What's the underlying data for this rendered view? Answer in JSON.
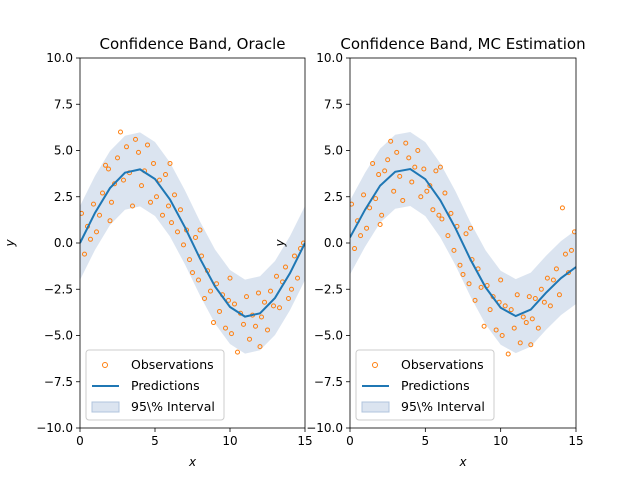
{
  "figure": {
    "colors": {
      "observations": "#ff7f0e",
      "predictions": "#1f77b4",
      "band": "#b0c4de"
    }
  },
  "chart_data": [
    {
      "type": "scatter",
      "title": "Confidence Band, Oracle",
      "xlabel": "x",
      "ylabel": "y",
      "xlim": [
        0,
        15
      ],
      "ylim": [
        -10,
        10
      ],
      "x_ticks": [
        "0",
        "5",
        "10",
        "15"
      ],
      "y_ticks": [
        "10.0",
        "7.5",
        "5.0",
        "2.5",
        "0.0",
        "−2.5",
        "−5.0",
        "−7.5",
        "−10.0"
      ],
      "grid": false,
      "legend_position": "lower-left",
      "legend": [
        "Observations",
        "Predictions",
        "95\\% Interval"
      ],
      "prediction_function": "4*sin(2*pi*x/15)",
      "band_halfwidth": 2.0,
      "series": [
        {
          "name": "Observations",
          "points": [
            [
              0.1,
              1.6
            ],
            [
              0.3,
              -0.6
            ],
            [
              0.5,
              0.9
            ],
            [
              0.7,
              0.2
            ],
            [
              0.9,
              2.1
            ],
            [
              1.1,
              0.6
            ],
            [
              1.3,
              1.5
            ],
            [
              1.5,
              2.7
            ],
            [
              1.7,
              4.2
            ],
            [
              1.9,
              4.0
            ],
            [
              2.1,
              2.2
            ],
            [
              2.3,
              3.2
            ],
            [
              2.5,
              4.6
            ],
            [
              2.7,
              6.0
            ],
            [
              2.9,
              3.4
            ],
            [
              3.1,
              5.2
            ],
            [
              3.3,
              3.8
            ],
            [
              3.5,
              2.0
            ],
            [
              3.7,
              5.6
            ],
            [
              3.9,
              4.9
            ],
            [
              4.1,
              3.1
            ],
            [
              4.3,
              3.9
            ],
            [
              4.5,
              5.3
            ],
            [
              4.7,
              2.2
            ],
            [
              4.9,
              4.3
            ],
            [
              5.1,
              2.5
            ],
            [
              5.3,
              3.4
            ],
            [
              5.5,
              1.5
            ],
            [
              5.7,
              3.7
            ],
            [
              5.9,
              2.0
            ],
            [
              6.1,
              1.1
            ],
            [
              6.3,
              2.6
            ],
            [
              6.5,
              0.6
            ],
            [
              6.7,
              1.8
            ],
            [
              6.9,
              -0.1
            ],
            [
              7.1,
              0.7
            ],
            [
              7.3,
              -0.9
            ],
            [
              7.5,
              -1.6
            ],
            [
              7.7,
              0.3
            ],
            [
              7.9,
              -2.0
            ],
            [
              8.1,
              -0.7
            ],
            [
              8.3,
              -3.0
            ],
            [
              8.5,
              -1.5
            ],
            [
              8.7,
              -2.6
            ],
            [
              8.9,
              -4.3
            ],
            [
              9.1,
              -2.2
            ],
            [
              9.3,
              -3.7
            ],
            [
              9.5,
              -2.8
            ],
            [
              9.7,
              -4.6
            ],
            [
              9.9,
              -3.1
            ],
            [
              10.1,
              -4.9
            ],
            [
              10.3,
              -3.3
            ],
            [
              10.5,
              -5.9
            ],
            [
              10.7,
              -3.8
            ],
            [
              10.9,
              -4.4
            ],
            [
              11.1,
              -2.9
            ],
            [
              11.3,
              -5.2
            ],
            [
              11.5,
              -3.9
            ],
            [
              11.7,
              -4.5
            ],
            [
              11.9,
              -2.7
            ],
            [
              12.1,
              -4.0
            ],
            [
              12.3,
              -3.2
            ],
            [
              12.5,
              -4.7
            ],
            [
              12.7,
              -2.6
            ],
            [
              12.9,
              -3.4
            ],
            [
              13.1,
              -1.8
            ],
            [
              13.3,
              -3.5
            ],
            [
              13.5,
              -2.1
            ],
            [
              13.7,
              -1.3
            ],
            [
              13.9,
              -3.0
            ],
            [
              14.1,
              -2.5
            ],
            [
              14.3,
              -0.7
            ],
            [
              14.5,
              -1.9
            ],
            [
              14.7,
              -0.3
            ],
            [
              14.9,
              0.0
            ],
            [
              2.0,
              1.2
            ],
            [
              6.0,
              4.3
            ],
            [
              8.0,
              0.7
            ],
            [
              10.0,
              -1.9
            ],
            [
              12.0,
              -5.6
            ]
          ]
        },
        {
          "name": "Predictions",
          "x": [
            0,
            1,
            2,
            3,
            4,
            5,
            6,
            7,
            8,
            9,
            10,
            11,
            12,
            13,
            14,
            15
          ],
          "y": [
            0.0,
            1.63,
            2.97,
            3.8,
            3.98,
            3.46,
            2.35,
            0.84,
            -0.84,
            -2.35,
            -3.46,
            -3.98,
            -3.8,
            -2.97,
            -1.63,
            0.0
          ]
        },
        {
          "name": "95\\% Interval",
          "lower_offset": -2.0,
          "upper_offset": 2.0
        }
      ]
    },
    {
      "type": "scatter",
      "title": "Confidence Band, MC Estimation",
      "xlabel": "x",
      "ylabel": "y",
      "xlim": [
        0,
        15
      ],
      "ylim": [
        -10,
        10
      ],
      "x_ticks": [
        "0",
        "5",
        "10",
        "15"
      ],
      "y_ticks": [
        "10.0",
        "7.5",
        "5.0",
        "2.5",
        "0.0",
        "−2.5",
        "−5.0",
        "−7.5",
        "−10.0"
      ],
      "grid": false,
      "legend_position": "lower-left",
      "legend": [
        "Observations",
        "Predictions",
        "95\\% Interval"
      ],
      "prediction_function": "4*sin(2*pi*x/15), flattening toward -1.3 at x=15",
      "band_halfwidth": 2.0,
      "series": [
        {
          "name": "Observations",
          "points": [
            [
              0.1,
              2.1
            ],
            [
              0.3,
              -0.3
            ],
            [
              0.5,
              1.2
            ],
            [
              0.7,
              0.4
            ],
            [
              0.9,
              2.6
            ],
            [
              1.1,
              0.8
            ],
            [
              1.3,
              1.9
            ],
            [
              1.5,
              4.3
            ],
            [
              1.7,
              2.4
            ],
            [
              1.9,
              3.7
            ],
            [
              2.1,
              1.5
            ],
            [
              2.3,
              3.9
            ],
            [
              2.5,
              4.5
            ],
            [
              2.7,
              5.5
            ],
            [
              2.9,
              2.8
            ],
            [
              3.1,
              4.9
            ],
            [
              3.3,
              3.6
            ],
            [
              3.5,
              2.3
            ],
            [
              3.7,
              5.4
            ],
            [
              3.9,
              4.6
            ],
            [
              4.1,
              3.3
            ],
            [
              4.3,
              4.1
            ],
            [
              4.5,
              5.0
            ],
            [
              4.7,
              2.5
            ],
            [
              4.9,
              4.0
            ],
            [
              5.1,
              2.8
            ],
            [
              5.3,
              3.1
            ],
            [
              5.5,
              1.8
            ],
            [
              5.7,
              3.9
            ],
            [
              5.9,
              1.5
            ],
            [
              6.1,
              1.3
            ],
            [
              6.3,
              2.7
            ],
            [
              6.5,
              0.4
            ],
            [
              6.7,
              1.6
            ],
            [
              6.9,
              -0.4
            ],
            [
              7.1,
              0.9
            ],
            [
              7.3,
              -1.2
            ],
            [
              7.5,
              -1.7
            ],
            [
              7.7,
              0.5
            ],
            [
              7.9,
              -2.2
            ],
            [
              8.1,
              -0.9
            ],
            [
              8.3,
              -3.1
            ],
            [
              8.5,
              -1.4
            ],
            [
              8.7,
              -2.4
            ],
            [
              8.9,
              -4.5
            ],
            [
              9.1,
              -2.3
            ],
            [
              9.3,
              -3.6
            ],
            [
              9.5,
              -2.9
            ],
            [
              9.7,
              -4.7
            ],
            [
              9.9,
              -3.2
            ],
            [
              10.1,
              -5.0
            ],
            [
              10.3,
              -3.4
            ],
            [
              10.5,
              -6.0
            ],
            [
              10.7,
              -3.6
            ],
            [
              10.9,
              -4.6
            ],
            [
              11.1,
              -2.8
            ],
            [
              11.3,
              -5.4
            ],
            [
              11.5,
              -4.0
            ],
            [
              11.7,
              -4.3
            ],
            [
              11.9,
              -2.9
            ],
            [
              12.1,
              -4.1
            ],
            [
              12.3,
              -3.0
            ],
            [
              12.5,
              -4.6
            ],
            [
              12.7,
              -2.5
            ],
            [
              12.9,
              -3.2
            ],
            [
              13.1,
              -1.9
            ],
            [
              13.3,
              -3.4
            ],
            [
              13.5,
              -2.0
            ],
            [
              13.7,
              -1.4
            ],
            [
              13.9,
              -2.8
            ],
            [
              14.1,
              1.9
            ],
            [
              14.3,
              -0.6
            ],
            [
              14.5,
              -1.6
            ],
            [
              14.7,
              -0.4
            ],
            [
              14.9,
              0.6
            ],
            [
              2.0,
              1.0
            ],
            [
              6.0,
              4.1
            ],
            [
              8.0,
              0.8
            ],
            [
              10.0,
              -2.0
            ],
            [
              12.0,
              -5.5
            ]
          ]
        },
        {
          "name": "Predictions",
          "x": [
            0,
            1,
            2,
            3,
            4,
            5,
            6,
            7,
            8,
            9,
            10,
            11,
            12,
            13,
            14,
            15
          ],
          "y": [
            0.3,
            1.8,
            3.1,
            3.85,
            4.0,
            3.45,
            2.3,
            0.8,
            -0.9,
            -2.4,
            -3.5,
            -3.95,
            -3.6,
            -2.7,
            -1.9,
            -1.3
          ]
        },
        {
          "name": "95\\% Interval",
          "lower_offset": -2.0,
          "upper_offset": 2.0
        }
      ]
    }
  ]
}
